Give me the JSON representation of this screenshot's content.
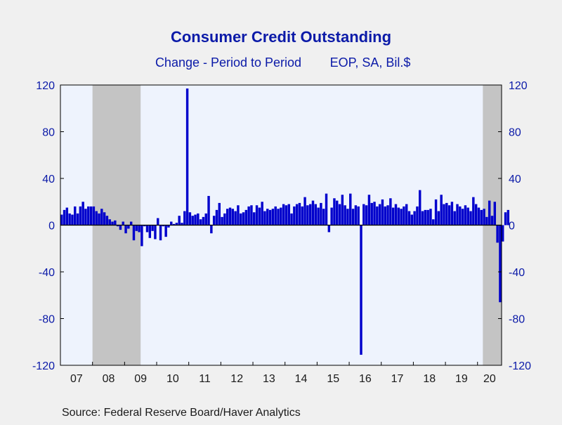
{
  "chart_data": {
    "type": "bar",
    "title": "Consumer Credit Outstanding",
    "subtitle": "Change - Period to Period",
    "units": "EOP, SA, Bil.$",
    "source": "Source:  Federal Reserve Board/Haver Analytics",
    "ylim": [
      -120,
      120
    ],
    "yticks": [
      -120,
      -80,
      -40,
      0,
      40,
      80,
      120
    ],
    "ytick_labels": [
      "-120",
      "-80",
      "-40",
      "0",
      "40",
      "80",
      "120"
    ],
    "x_tick_labels": [
      "07",
      "08",
      "09",
      "10",
      "11",
      "12",
      "13",
      "14",
      "15",
      "16",
      "17",
      "18",
      "19",
      "20"
    ],
    "start": "2007-01",
    "end": "2020-09",
    "recessions": [
      {
        "start": "2008-01",
        "end": "2009-06"
      },
      {
        "start": "2020-03",
        "end": "2020-09"
      }
    ],
    "grid": false,
    "legend": "none",
    "colors": {
      "bars": "#0000cc",
      "plot_background": "#eef3fd",
      "recession": "#c4c4c4",
      "axis": "#000000",
      "text": "#0b1aa8",
      "page_background": "#f0f0f0"
    },
    "series": [
      {
        "frequency": "monthly",
        "values": [
          9,
          13,
          15,
          10,
          9,
          16,
          10,
          16,
          20,
          14,
          16,
          16,
          16,
          12,
          10,
          14,
          11,
          8,
          5,
          3,
          4,
          -1,
          -4,
          3,
          -7,
          -3,
          3,
          -13,
          -5,
          -6,
          -18,
          -1,
          -6,
          -11,
          -5,
          -12,
          6,
          -13,
          -1,
          -10,
          -2,
          3,
          1,
          2,
          8,
          2,
          12,
          117,
          11,
          8,
          9,
          10,
          5,
          7,
          10,
          25,
          -7,
          8,
          13,
          19,
          7,
          10,
          14,
          15,
          14,
          12,
          17,
          10,
          11,
          13,
          16,
          17,
          11,
          17,
          15,
          20,
          12,
          14,
          13,
          14,
          16,
          14,
          15,
          18,
          17,
          18,
          10,
          16,
          18,
          19,
          16,
          24,
          17,
          18,
          21,
          18,
          15,
          19,
          14,
          27,
          -6,
          15,
          23,
          21,
          18,
          26,
          17,
          14,
          27,
          14,
          17,
          16,
          -111,
          18,
          17,
          26,
          19,
          20,
          16,
          18,
          22,
          16,
          17,
          23,
          15,
          18,
          15,
          14,
          16,
          18,
          12,
          9,
          12,
          16,
          30,
          12,
          13,
          13,
          14,
          5,
          22,
          12,
          26,
          18,
          19,
          17,
          20,
          12,
          18,
          16,
          14,
          17,
          15,
          12,
          24,
          18,
          15,
          13,
          14,
          7,
          21,
          8,
          20,
          -15,
          -66,
          -14,
          11,
          13
        ]
      }
    ]
  },
  "footer": {
    "source": "Source:  Federal Reserve Board/Haver Analytics"
  }
}
